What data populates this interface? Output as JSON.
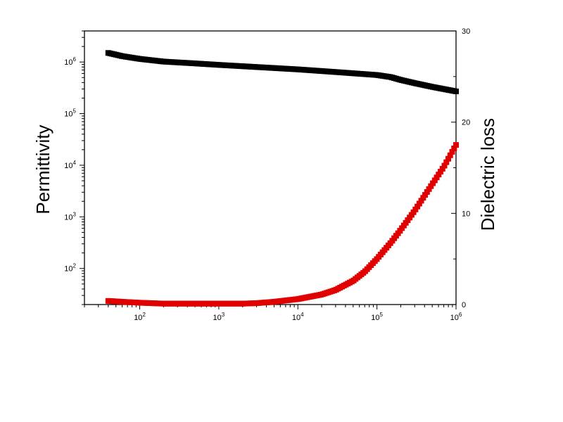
{
  "chart_data": {
    "type": "scatter",
    "x_scale": "log",
    "xlim": [
      20,
      1000000
    ],
    "x_ticks": [
      {
        "value": 100,
        "label": "10",
        "exp": "2"
      },
      {
        "value": 1000,
        "label": "10",
        "exp": "3"
      },
      {
        "value": 10000,
        "label": "10",
        "exp": "4"
      },
      {
        "value": 100000,
        "label": "10",
        "exp": "5"
      },
      {
        "value": 1000000,
        "label": "10",
        "exp": "6"
      }
    ],
    "left_axis": {
      "label": "Permittivity",
      "scale": "log",
      "ylim": [
        20,
        4000000
      ],
      "ticks": [
        {
          "value": 100,
          "label": "10",
          "exp": "2"
        },
        {
          "value": 1000,
          "label": "10",
          "exp": "3"
        },
        {
          "value": 10000,
          "label": "10",
          "exp": "4"
        },
        {
          "value": 100000,
          "label": "10",
          "exp": "5"
        },
        {
          "value": 1000000,
          "label": "10",
          "exp": "6"
        }
      ]
    },
    "right_axis": {
      "label": "Dielectric loss",
      "scale": "linear",
      "ylim": [
        0,
        30
      ],
      "ticks": [
        {
          "value": 0,
          "label": "0"
        },
        {
          "value": 10,
          "label": "10"
        },
        {
          "value": 20,
          "label": "20"
        },
        {
          "value": 30,
          "label": "30"
        }
      ]
    },
    "series": [
      {
        "color": "#000000",
        "axis": "left",
        "x": [
          40,
          60,
          100,
          200,
          500,
          1000,
          3000,
          10000,
          30000,
          100000,
          150000,
          200000,
          300000,
          500000,
          1000000
        ],
        "values": [
          1500000,
          1300000,
          1150000,
          1020000,
          940000,
          880000,
          800000,
          720000,
          640000,
          560000,
          510000,
          450000,
          390000,
          330000,
          270000
        ]
      },
      {
        "color": "#e00000",
        "axis": "right",
        "x": [
          40,
          60,
          100,
          200,
          500,
          1000,
          2000,
          3000,
          5000,
          10000,
          20000,
          30000,
          50000,
          70000,
          100000,
          150000,
          200000,
          300000,
          500000,
          700000,
          1000000
        ],
        "values": [
          0.4,
          0.3,
          0.2,
          0.1,
          0.1,
          0.1,
          0.1,
          0.15,
          0.3,
          0.6,
          1.1,
          1.6,
          2.6,
          3.6,
          5.0,
          6.8,
          8.2,
          10.3,
          13.2,
          15.1,
          17.5
        ]
      }
    ]
  }
}
